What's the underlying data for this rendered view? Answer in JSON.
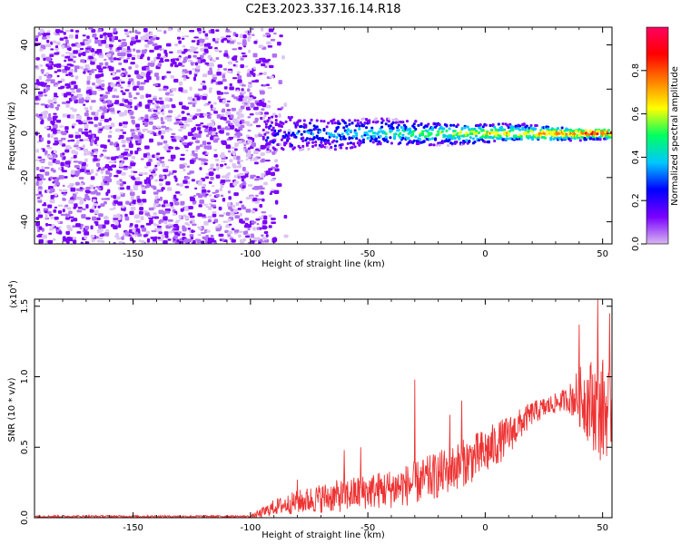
{
  "figure": {
    "title": "C2E3.2023.337.16.14.R18"
  },
  "chart_data": [
    {
      "type": "heatmap",
      "xlabel": "Height of straight line (km)",
      "ylabel": "Frequency (Hz)",
      "xlim": [
        -192,
        54
      ],
      "ylim": [
        -50,
        48
      ],
      "xticks": [
        -150,
        -100,
        -50,
        0,
        50
      ],
      "yticks": [
        -40,
        -20,
        0,
        20,
        40
      ],
      "grid": false,
      "colorbar": {
        "label": "Normalized spectral amplitude",
        "range": [
          0.0,
          1.0
        ],
        "ticks": [
          "0.0",
          "0.2",
          "0.4",
          "0.6",
          "0.8"
        ],
        "tick_values": [
          0.0,
          0.2,
          0.4,
          0.6,
          0.8
        ],
        "colormap": [
          "#d8b8f0",
          "#7a00ff",
          "#0000ff",
          "#00c8ff",
          "#00ff60",
          "#ffff00",
          "#ff8000",
          "#ff0000",
          "#ff0060"
        ]
      },
      "features": [
        {
          "region": "broadband noise",
          "x_range": [
            -192,
            -92
          ],
          "y_range": [
            -50,
            48
          ],
          "amplitude": [
            0.0,
            0.2
          ]
        },
        {
          "region": "signal band",
          "x_range": [
            -95,
            54
          ],
          "center_frequency": 0,
          "half_width": [
            8,
            2
          ],
          "amplitude": [
            0.1,
            0.95
          ]
        }
      ]
    },
    {
      "type": "line",
      "xlabel": "Height of straight line (km)",
      "ylabel": "SNR (10 * v/v)",
      "yscale_label": "(x10",
      "yscale_exponent": "4",
      "yscale_suffix": ")",
      "xlim": [
        -192,
        54
      ],
      "ylim": [
        0.0,
        1.55
      ],
      "xticks": [
        -150,
        -100,
        -50,
        0,
        50
      ],
      "yticks": [
        "0.0",
        "0.5",
        "1.0",
        "1.5"
      ],
      "ytick_values": [
        0.0,
        0.5,
        1.0,
        1.5
      ],
      "grid": false,
      "series": [
        {
          "color": "#ee3333",
          "x": [
            -192,
            -150,
            -100,
            -96,
            -90,
            -80,
            -70,
            -60,
            -50,
            -40,
            -30,
            -20,
            -10,
            0,
            10,
            20,
            30,
            35,
            40,
            45,
            50,
            54
          ],
          "y": [
            0.01,
            0.01,
            0.01,
            0.03,
            0.08,
            0.12,
            0.15,
            0.17,
            0.2,
            0.22,
            0.26,
            0.32,
            0.4,
            0.48,
            0.6,
            0.75,
            0.82,
            0.85,
            0.88,
            0.85,
            0.8,
            0.8
          ],
          "amp": [
            0.01,
            0.01,
            0.01,
            0.05,
            0.08,
            0.12,
            0.15,
            0.17,
            0.18,
            0.2,
            0.22,
            0.24,
            0.24,
            0.25,
            0.2,
            0.12,
            0.1,
            0.12,
            0.3,
            0.45,
            0.55,
            0.4
          ],
          "peaks": [
            {
              "x": -80,
              "y": 0.27
            },
            {
              "x": -60,
              "y": 0.48
            },
            {
              "x": -53,
              "y": 0.5
            },
            {
              "x": -30,
              "y": 0.98
            },
            {
              "x": -15,
              "y": 0.73
            },
            {
              "x": -10,
              "y": 0.83
            },
            {
              "x": 40,
              "y": 1.37
            },
            {
              "x": 48,
              "y": 1.55
            },
            {
              "x": 53,
              "y": 1.45
            }
          ]
        }
      ]
    }
  ]
}
